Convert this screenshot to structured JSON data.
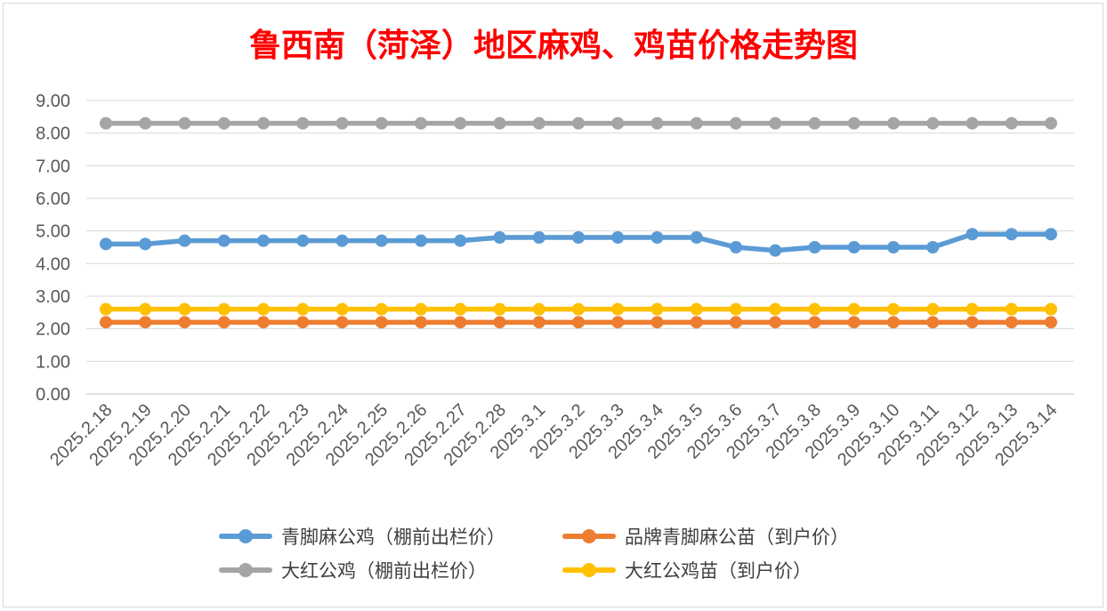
{
  "title": "鲁西南（菏泽）地区麻鸡、鸡苗价格走势图",
  "chart_data": {
    "type": "line",
    "title": "鲁西南（菏泽）地区麻鸡、鸡苗价格走势图",
    "xlabel": "",
    "ylabel": "",
    "ylim": [
      0,
      9
    ],
    "yticks": [
      "0.00",
      "1.00",
      "2.00",
      "3.00",
      "4.00",
      "5.00",
      "6.00",
      "7.00",
      "8.00",
      "9.00"
    ],
    "grid": true,
    "legend_position": "bottom",
    "categories": [
      "2025.2.18",
      "2025.2.19",
      "2025.2.20",
      "2025.2.21",
      "2025.2.22",
      "2025.2.23",
      "2025.2.24",
      "2025.2.25",
      "2025.2.26",
      "2025.2.27",
      "2025.2.28",
      "2025.3.1",
      "2025.3.2",
      "2025.3.3",
      "2025.3.4",
      "2025.3.5",
      "2025.3.6",
      "2025.3.7",
      "2025.3.8",
      "2025.3.9",
      "2025.3.10",
      "2025.3.11",
      "2025.3.12",
      "2025.3.13",
      "2025.3.14"
    ],
    "series": [
      {
        "name": "青脚麻公鸡（棚前出栏价）",
        "color": "#5b9bd5",
        "values": [
          4.6,
          4.6,
          4.7,
          4.7,
          4.7,
          4.7,
          4.7,
          4.7,
          4.7,
          4.7,
          4.8,
          4.8,
          4.8,
          4.8,
          4.8,
          4.8,
          4.5,
          4.4,
          4.5,
          4.5,
          4.5,
          4.5,
          4.9,
          4.9,
          4.9
        ]
      },
      {
        "name": "品牌青脚麻公苗（到户价）",
        "color": "#ed7d31",
        "values": [
          2.2,
          2.2,
          2.2,
          2.2,
          2.2,
          2.2,
          2.2,
          2.2,
          2.2,
          2.2,
          2.2,
          2.2,
          2.2,
          2.2,
          2.2,
          2.2,
          2.2,
          2.2,
          2.2,
          2.2,
          2.2,
          2.2,
          2.2,
          2.2,
          2.2
        ]
      },
      {
        "name": "大红公鸡（棚前出栏价）",
        "color": "#a5a5a5",
        "values": [
          8.3,
          8.3,
          8.3,
          8.3,
          8.3,
          8.3,
          8.3,
          8.3,
          8.3,
          8.3,
          8.3,
          8.3,
          8.3,
          8.3,
          8.3,
          8.3,
          8.3,
          8.3,
          8.3,
          8.3,
          8.3,
          8.3,
          8.3,
          8.3,
          8.3
        ]
      },
      {
        "name": "大红公鸡苗（到户价）",
        "color": "#ffc000",
        "values": [
          2.6,
          2.6,
          2.6,
          2.6,
          2.6,
          2.6,
          2.6,
          2.6,
          2.6,
          2.6,
          2.6,
          2.6,
          2.6,
          2.6,
          2.6,
          2.6,
          2.6,
          2.6,
          2.6,
          2.6,
          2.6,
          2.6,
          2.6,
          2.6,
          2.6
        ]
      }
    ]
  }
}
